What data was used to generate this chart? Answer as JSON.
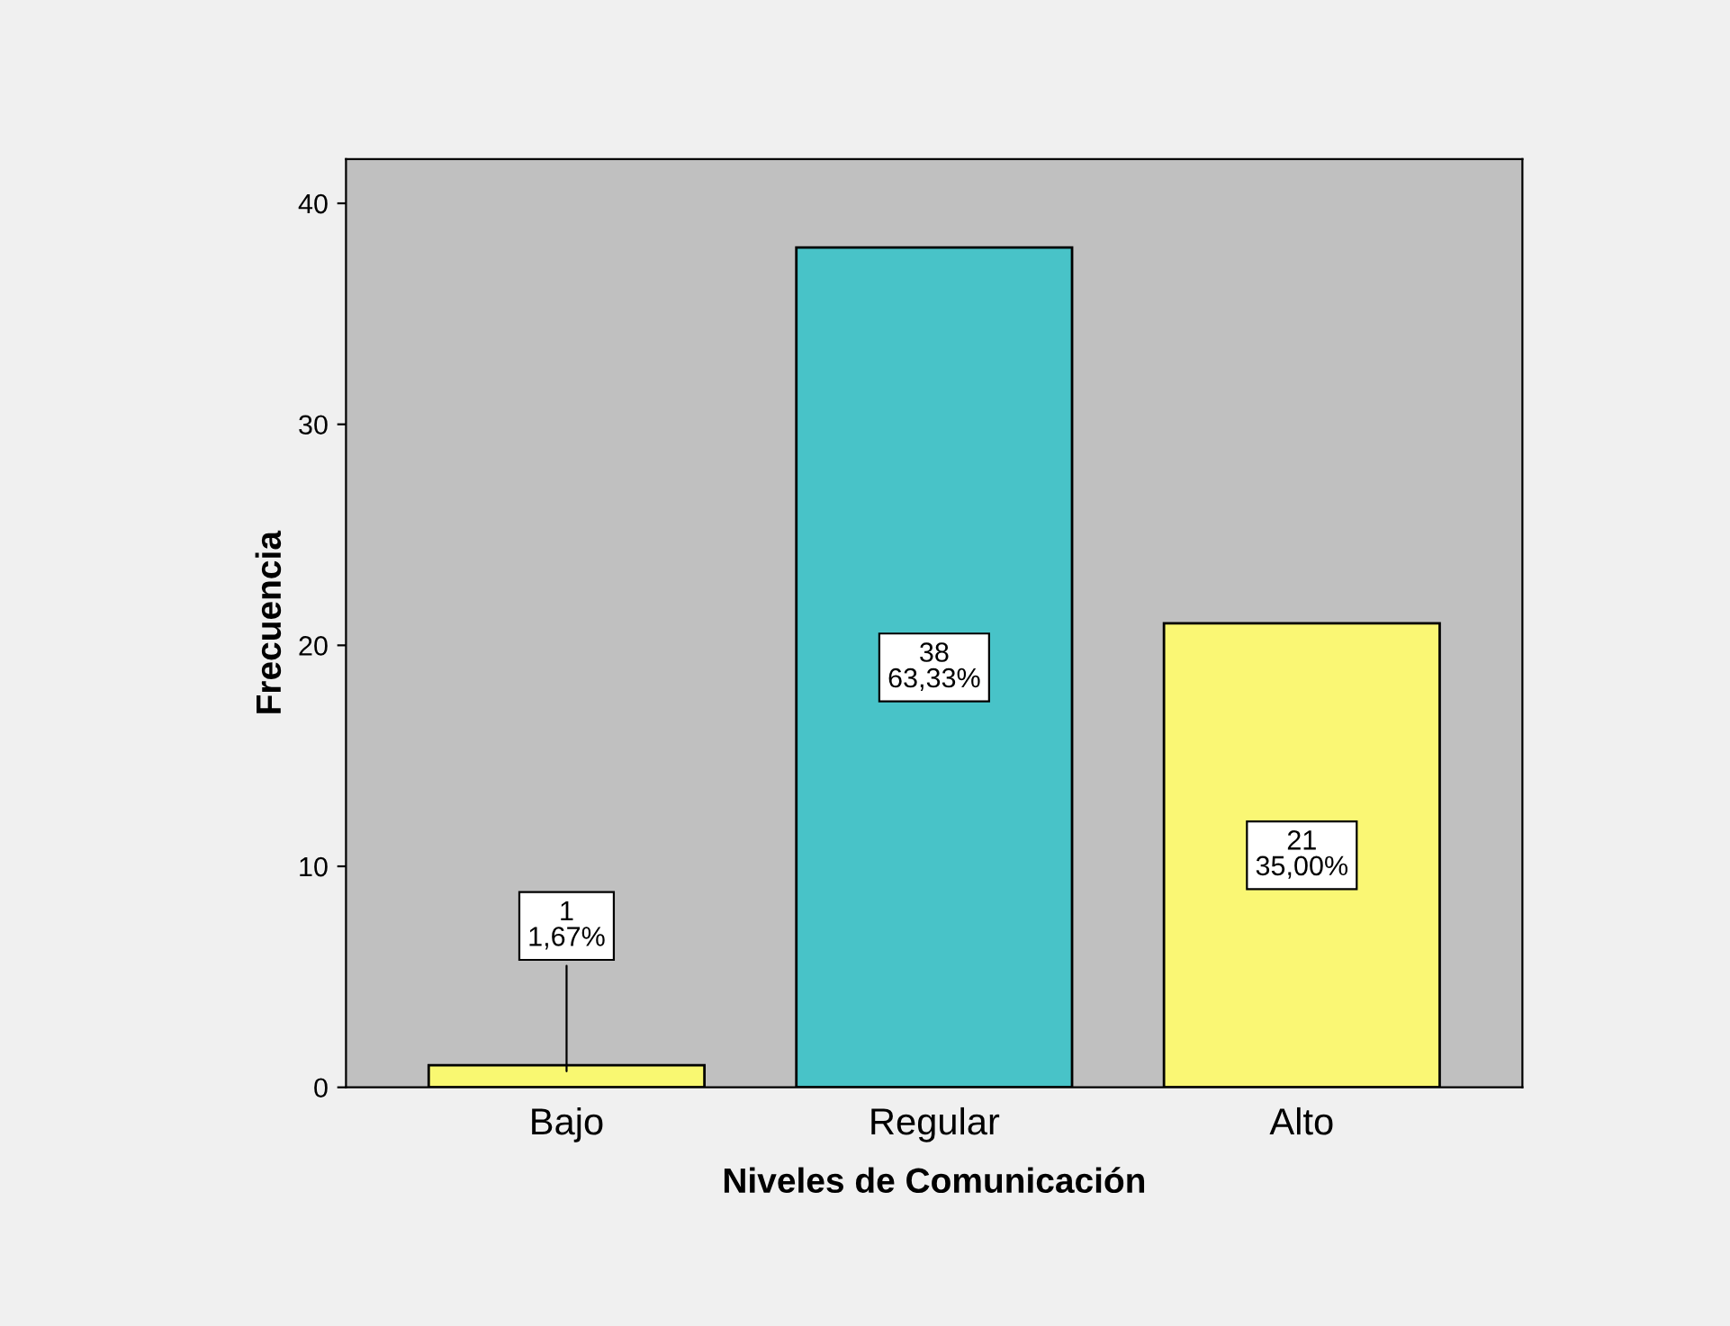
{
  "chart_data": {
    "type": "bar",
    "xlabel": "Niveles de Comunicación",
    "ylabel": "Frecuencia",
    "categories": [
      "Bajo",
      "Regular",
      "Alto"
    ],
    "values": [
      1,
      38,
      21
    ],
    "colors": [
      "#f9f871",
      "#48c3c8",
      "#faf774"
    ],
    "value_labels": [
      "1\n1,67%",
      "38\n63,33%",
      "21\n35,00%"
    ],
    "ylim": [
      0,
      42
    ],
    "yticks": [
      0,
      10,
      20,
      30,
      40
    ],
    "grid": false,
    "legend": false
  }
}
